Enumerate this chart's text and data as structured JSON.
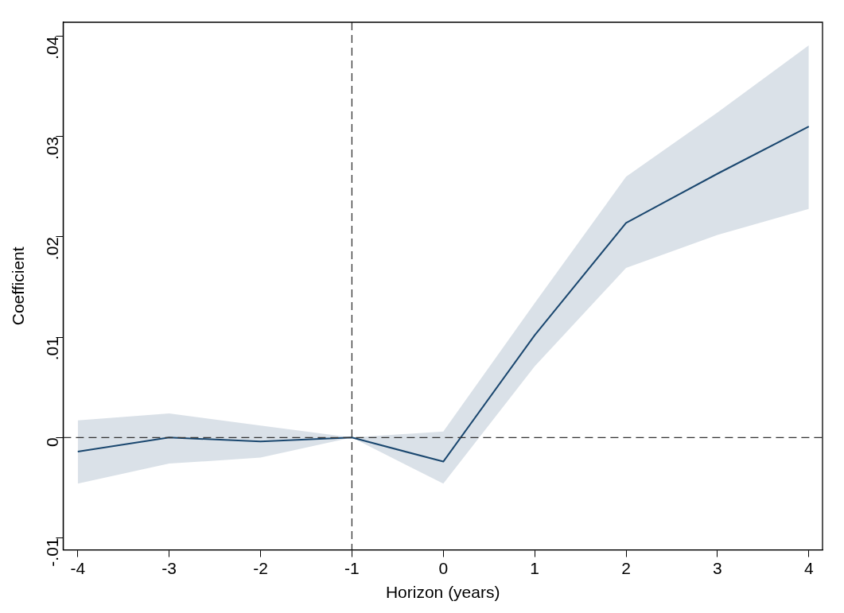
{
  "chart_data": {
    "type": "line",
    "xlabel": "Horizon (years)",
    "ylabel": "Coefficient",
    "x": [
      -4,
      -3,
      -2,
      -1,
      0,
      1,
      2,
      3,
      4
    ],
    "series": [
      {
        "color": "#1a476f",
        "values": [
          -0.0014,
          0,
          -0.0004,
          0,
          -0.0024,
          0.0102,
          0.0214,
          0.0263,
          0.031
        ],
        "lower": [
          -0.0046,
          -0.0026,
          -0.002,
          0,
          -0.0046,
          0.0071,
          0.0169,
          0.0202,
          0.0228
        ],
        "upper": [
          0.0017,
          0.0024,
          0.0012,
          0,
          0.0006,
          0.0134,
          0.026,
          0.0324,
          0.0391
        ]
      }
    ],
    "xlim": [
      -4.16,
      4.15
    ],
    "xticks": [
      -4,
      -3,
      -2,
      -1,
      0,
      1,
      2,
      3,
      4
    ],
    "ylim": [
      -0.0112,
      0.0414
    ],
    "yticks": [
      {
        "value": -0.01,
        "label": "-.01"
      },
      {
        "value": 0,
        "label": "0"
      },
      {
        "value": 0.01,
        "label": ".01"
      },
      {
        "value": 0.02,
        "label": ".02"
      },
      {
        "value": 0.03,
        "label": ".03"
      },
      {
        "value": 0.04,
        "label": ".04"
      }
    ],
    "ref_lines": [
      {
        "axis": "y",
        "value": 0,
        "color": "#333333",
        "line_style": "dashed"
      },
      {
        "axis": "x",
        "value": -1,
        "color": "#333333",
        "line_style": "dashed"
      }
    ],
    "grid": false,
    "legend": false,
    "marker": "none",
    "line_style": "solid"
  }
}
